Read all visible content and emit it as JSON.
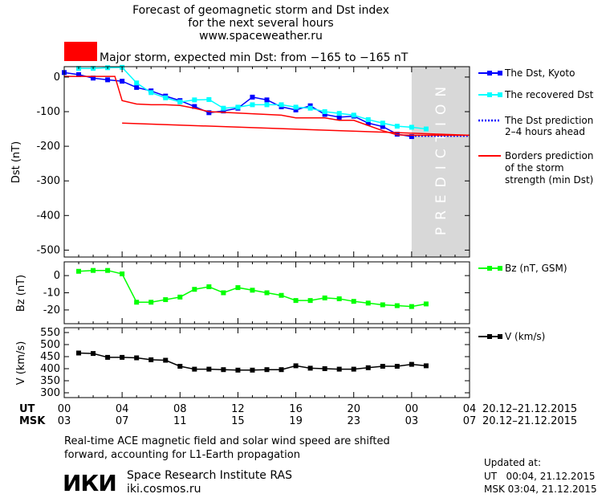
{
  "header": {
    "title_line1": "Forecast of geomagnetic storm and Dst index",
    "title_line2": "for the next several hours",
    "title_line3": "www.spaceweather.ru",
    "storm_text": "Major storm, expected min Dst: from −165 to −165 nT",
    "storm_color": "#ff0000"
  },
  "prediction_label": "PREDICTION",
  "legend": {
    "dst_kyoto": "The Dst, Kyoto",
    "recovered": "The recovered Dst",
    "prediction_line1": "The Dst prediction",
    "prediction_line2": "2–4 hours ahead",
    "borders_line1": "Borders prediction",
    "borders_line2": "of the storm",
    "borders_line3": "strength (min Dst)",
    "bz": "Bz (nT, GSM)",
    "v": "V (km/s)"
  },
  "time_axis": {
    "ut_label": "UT",
    "msk_label": "MSK",
    "ut_ticks": [
      "00",
      "04",
      "08",
      "12",
      "16",
      "20",
      "00",
      "04"
    ],
    "msk_ticks": [
      "03",
      "07",
      "11",
      "15",
      "19",
      "23",
      "03",
      "07"
    ],
    "ut_range": "20.12–21.12.2015",
    "msk_range": "20.12–21.12.2015"
  },
  "footer": {
    "note_line1": "Real-time ACE magnetic field and solar wind speed are shifted",
    "note_line2": "forward, accounting for L1-Earth propagation",
    "institute_logo": "ИКИ",
    "institute_name": "Space Research Institute RAS",
    "institute_url": "iki.cosmos.ru",
    "updated_label": "Updated at:",
    "updated_ut": "UT   00:04, 21.12.2015",
    "updated_msk": "MSK 03:04, 21.12.2015"
  },
  "chart_data": [
    {
      "type": "line",
      "ylabel": "Dst (nT)",
      "xlim": [
        0,
        28
      ],
      "ylim": [
        -520,
        30
      ],
      "yticks": [
        0,
        -100,
        -200,
        -300,
        -400,
        -500
      ],
      "prediction_shade": [
        24,
        28
      ],
      "series": [
        {
          "name": "The Dst, Kyoto",
          "color": "#0000ff",
          "x": [
            0,
            1,
            2,
            3,
            4,
            5,
            6,
            7,
            8,
            9,
            10,
            11,
            12,
            13,
            14,
            15,
            16,
            17,
            18,
            19,
            20,
            21,
            22,
            23,
            24
          ],
          "y": [
            13,
            7,
            -3,
            -8,
            -12,
            -30,
            -40,
            -55,
            -68,
            -85,
            -103,
            -98,
            -90,
            -58,
            -66,
            -86,
            -95,
            -83,
            -108,
            -116,
            -113,
            -133,
            -143,
            -165,
            -172
          ]
        },
        {
          "name": "The recovered Dst",
          "color": "#00ffff",
          "x": [
            1,
            2,
            3,
            4,
            5,
            6,
            7,
            8,
            9,
            10,
            11,
            12,
            13,
            14,
            15,
            16,
            17,
            18,
            19,
            20,
            21,
            22,
            23,
            24,
            25
          ],
          "y": [
            25,
            25,
            27,
            28,
            -17,
            -45,
            -60,
            -72,
            -66,
            -65,
            -90,
            -87,
            -80,
            -80,
            -80,
            -87,
            -90,
            -100,
            -105,
            -110,
            -123,
            -133,
            -142,
            -145,
            -150
          ]
        },
        {
          "name": "The Dst prediction",
          "color": "#0000ff",
          "x": [
            24,
            28
          ],
          "y": [
            -170,
            -170
          ]
        },
        {
          "name": "Borders prediction",
          "color": "#ff0000",
          "x": [
            0,
            3.5,
            4,
            5,
            6,
            7,
            8,
            9,
            10,
            11,
            12,
            13,
            14,
            15,
            16,
            17,
            18,
            19,
            20,
            21,
            22,
            23,
            24,
            25,
            26,
            27,
            28
          ],
          "y": [
            2,
            2,
            -68,
            -78,
            -80,
            -80,
            -82,
            -90,
            -100,
            -102,
            -104,
            -106,
            -108,
            -110,
            -118,
            -118,
            -118,
            -125,
            -125,
            -140,
            -155,
            -167,
            -168,
            -168,
            -168,
            -168,
            -168
          ]
        },
        {
          "name": "Borders prediction",
          "color": "#ff0000",
          "x": [
            4,
            28
          ],
          "y": [
            -133,
            -168
          ]
        }
      ]
    },
    {
      "type": "line",
      "ylabel": "Bz (nT)",
      "xlim": [
        0,
        28
      ],
      "ylim": [
        -28,
        8
      ],
      "yticks": [
        0,
        -10,
        -20
      ],
      "series": [
        {
          "name": "Bz (nT, GSM)",
          "color": "#00ff00",
          "x": [
            1,
            2,
            3,
            4,
            5,
            6,
            7,
            8,
            9,
            10,
            11,
            12,
            13,
            14,
            15,
            16,
            17,
            18,
            19,
            20,
            21,
            22,
            23,
            24,
            25
          ],
          "y": [
            2.5,
            3,
            3,
            1,
            -15.5,
            -15.5,
            -14,
            -12.5,
            -8,
            -6.5,
            -10,
            -7,
            -8.5,
            -10,
            -11.5,
            -14.5,
            -14.5,
            -13,
            -13.5,
            -15,
            -16,
            -17,
            -17.5,
            -18,
            -16.5
          ]
        }
      ]
    },
    {
      "type": "line",
      "ylabel": "V (km/s)",
      "xlim": [
        0,
        28
      ],
      "ylim": [
        280,
        570
      ],
      "yticks": [
        550,
        500,
        450,
        400,
        350,
        300
      ],
      "series": [
        {
          "name": "V (km/s)",
          "color": "#000000",
          "x": [
            1,
            2,
            3,
            4,
            5,
            6,
            7,
            8,
            9,
            10,
            11,
            12,
            13,
            14,
            15,
            16,
            17,
            18,
            19,
            20,
            21,
            22,
            23,
            24,
            25
          ],
          "y": [
            465,
            463,
            447,
            447,
            445,
            437,
            435,
            410,
            398,
            398,
            396,
            394,
            394,
            396,
            396,
            412,
            402,
            400,
            398,
            398,
            404,
            410,
            410,
            418,
            412
          ]
        }
      ]
    }
  ]
}
